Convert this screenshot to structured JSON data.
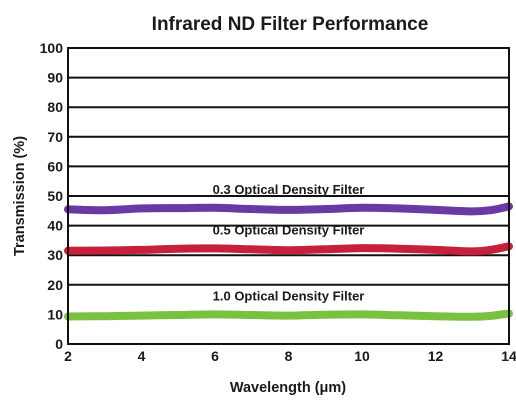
{
  "chart_data": {
    "type": "line",
    "title": "Infrared ND Filter Performance",
    "xlabel": "Wavelength (μm)",
    "ylabel": "Transmission (%)",
    "xlim": [
      2,
      14
    ],
    "ylim": [
      0,
      100
    ],
    "x_ticks": [
      2,
      4,
      6,
      8,
      10,
      12,
      14
    ],
    "y_ticks": [
      0,
      10,
      20,
      30,
      40,
      50,
      60,
      70,
      80,
      90,
      100
    ],
    "grid": "horizontal",
    "series": [
      {
        "name": "0.3 Optical Density Filter",
        "color": "#6a3aa4",
        "x": [
          2,
          3,
          4,
          5,
          6,
          7,
          8,
          9,
          10,
          11,
          12,
          13,
          13.5,
          14
        ],
        "y": [
          45.5,
          45.2,
          45.8,
          45.9,
          46.0,
          45.6,
          45.3,
          45.6,
          46.0,
          45.8,
          45.3,
          44.8,
          45.2,
          46.5
        ]
      },
      {
        "name": "0.5 Optical Density Filter",
        "color": "#c8203a",
        "x": [
          2,
          3,
          4,
          5,
          6,
          7,
          8,
          9,
          10,
          11,
          12,
          13,
          13.5,
          14
        ],
        "y": [
          31.5,
          31.6,
          31.8,
          32.2,
          32.3,
          32.0,
          31.7,
          32.0,
          32.4,
          32.2,
          31.8,
          31.3,
          31.8,
          33.0
        ]
      },
      {
        "name": "1.0 Optical Density Filter",
        "color": "#7ac142",
        "x": [
          2,
          3,
          4,
          5,
          6,
          7,
          8,
          9,
          10,
          11,
          12,
          13,
          13.5,
          14
        ],
        "y": [
          9.3,
          9.4,
          9.6,
          9.8,
          10.0,
          9.8,
          9.6,
          9.9,
          10.0,
          9.7,
          9.4,
          9.2,
          9.5,
          10.3
        ]
      }
    ]
  }
}
